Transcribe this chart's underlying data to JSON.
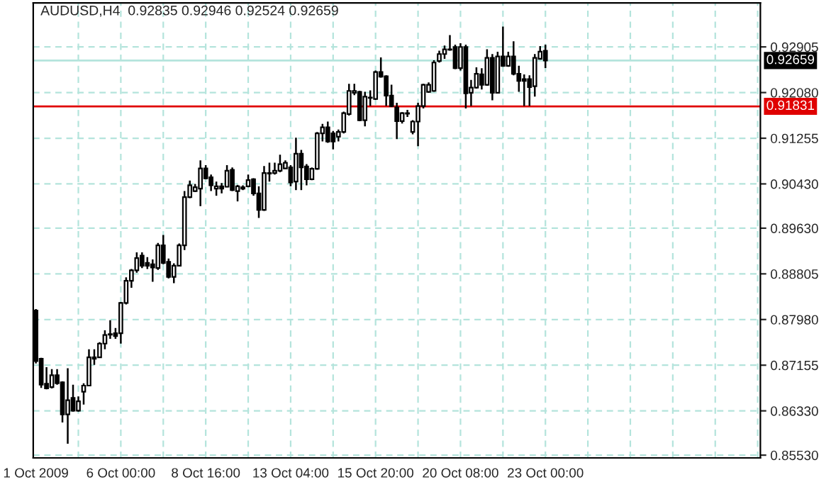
{
  "chart_data": {
    "type": "candlestick",
    "title": "AUDUSD,H4  0.92835 0.92946 0.92524 0.92659",
    "categories": [
      "1 Oct 2009",
      null,
      null,
      null,
      null,
      null,
      null,
      null,
      null,
      null,
      null,
      null,
      null,
      null,
      null,
      null,
      "6 Oct 00:00",
      null,
      null,
      null,
      null,
      null,
      null,
      null,
      null,
      null,
      null,
      null,
      null,
      null,
      null,
      null,
      "8 Oct 16:00",
      null,
      null,
      null,
      null,
      null,
      null,
      null,
      null,
      null,
      null,
      null,
      null,
      null,
      null,
      null,
      "13 Oct 04:00",
      null,
      null,
      null,
      null,
      null,
      null,
      null,
      null,
      null,
      null,
      null,
      null,
      null,
      null,
      null,
      "15 Oct 20:00",
      null,
      null,
      null,
      null,
      null,
      null,
      null,
      null,
      null,
      null,
      null,
      null,
      null,
      null,
      null,
      "20 Oct 08:00",
      null,
      null,
      null,
      null,
      null,
      null,
      null,
      null,
      null,
      null,
      null,
      null,
      null,
      null,
      null,
      "23 Oct 00:00",
      null,
      null,
      null,
      null,
      null,
      null,
      null,
      null,
      null,
      null,
      null,
      null,
      null,
      null,
      null,
      null,
      null,
      null,
      null,
      null,
      null,
      null,
      null,
      null,
      null,
      null,
      null,
      null,
      null,
      null,
      null,
      null,
      null,
      null,
      null,
      null,
      null,
      null,
      null,
      null
    ],
    "ohlc": [
      [
        0.88142,
        0.88168,
        0.87187,
        0.87229
      ],
      [
        0.87272,
        0.87289,
        0.86743,
        0.86803
      ],
      [
        0.8682,
        0.87118,
        0.86718,
        0.86735
      ],
      [
        0.8676,
        0.87084,
        0.86735,
        0.86974
      ],
      [
        0.86974,
        0.87084,
        0.86803,
        0.86829
      ],
      [
        0.86846,
        0.86863,
        0.86121,
        0.86265
      ],
      [
        0.86265,
        0.87101,
        0.85736,
        0.86521
      ],
      [
        0.86564,
        0.86803,
        0.86317,
        0.86334
      ],
      [
        0.86334,
        0.8659,
        0.86317,
        0.86504
      ],
      [
        0.86675,
        0.86829,
        0.86444,
        0.86786
      ],
      [
        0.86786,
        0.87443,
        0.86777,
        0.87297
      ],
      [
        0.87272,
        0.87443,
        0.87161,
        0.87297
      ],
      [
        0.87297,
        0.87571,
        0.87289,
        0.87545
      ],
      [
        0.87545,
        0.87784,
        0.87443,
        0.87699
      ],
      [
        0.87707,
        0.87967,
        0.8763,
        0.87716
      ],
      [
        0.87733,
        0.87826,
        0.8763,
        0.87682
      ],
      [
        0.87733,
        0.88296,
        0.87545,
        0.88279
      ],
      [
        0.88279,
        0.88741,
        0.88253,
        0.88681
      ],
      [
        0.88681,
        0.88894,
        0.88552,
        0.88868
      ],
      [
        0.88868,
        0.89192,
        0.88825,
        0.8909
      ],
      [
        0.89133,
        0.89192,
        0.8891,
        0.88953
      ],
      [
        0.89004,
        0.89107,
        0.88894,
        0.88953
      ],
      [
        0.88979,
        0.89064,
        0.88663,
        0.88919
      ],
      [
        0.8891,
        0.89363,
        0.88876,
        0.8932
      ],
      [
        0.8932,
        0.89508,
        0.88979,
        0.89004
      ],
      [
        0.89022,
        0.89081,
        0.88723,
        0.88749
      ],
      [
        0.88749,
        0.88996,
        0.88637,
        0.88953
      ],
      [
        0.88953,
        0.89354,
        0.88936,
        0.8932
      ],
      [
        0.8932,
        0.90301,
        0.89235,
        0.9019
      ],
      [
        0.9019,
        0.90489,
        0.90173,
        0.90404
      ],
      [
        0.90301,
        0.90429,
        0.90284,
        0.90369
      ],
      [
        0.90344,
        0.90856,
        0.90028,
        0.9071
      ],
      [
        0.9071,
        0.9077,
        0.90514,
        0.90531
      ],
      [
        0.90548,
        0.90599,
        0.90301,
        0.90404
      ],
      [
        0.90344,
        0.90472,
        0.90216,
        0.90387
      ],
      [
        0.90387,
        0.90446,
        0.90259,
        0.90344
      ],
      [
        0.90378,
        0.9077,
        0.90369,
        0.90668
      ],
      [
        0.90685,
        0.90728,
        0.90301,
        0.90318
      ],
      [
        0.90301,
        0.90412,
        0.90114,
        0.90387
      ],
      [
        0.90369,
        0.90404,
        0.90318,
        0.90344
      ],
      [
        0.90387,
        0.90599,
        0.90369,
        0.90498
      ],
      [
        0.90514,
        0.90531,
        0.90216,
        0.90259
      ],
      [
        0.90259,
        0.90387,
        0.89815,
        0.8996
      ],
      [
        0.8996,
        0.90753,
        0.89943,
        0.90625
      ],
      [
        0.90616,
        0.90813,
        0.90472,
        0.90625
      ],
      [
        0.90625,
        0.90813,
        0.90599,
        0.90668
      ],
      [
        0.90668,
        0.90958,
        0.90642,
        0.90787
      ],
      [
        0.9071,
        0.90856,
        0.90702,
        0.90813
      ],
      [
        0.90728,
        0.9077,
        0.90387,
        0.90455
      ],
      [
        0.90472,
        0.91265,
        0.90318,
        0.90975
      ],
      [
        0.90975,
        0.91043,
        0.90318,
        0.90728
      ],
      [
        0.90745,
        0.90787,
        0.90404,
        0.90514
      ],
      [
        0.90514,
        0.90728,
        0.90498,
        0.90702
      ],
      [
        0.90702,
        0.91368,
        0.90685,
        0.91342
      ],
      [
        0.91342,
        0.91513,
        0.91197,
        0.91453
      ],
      [
        0.91453,
        0.91556,
        0.91171,
        0.91197
      ],
      [
        0.91342,
        0.91385,
        0.91052,
        0.91197
      ],
      [
        0.91283,
        0.91411,
        0.91197,
        0.91368
      ],
      [
        0.91368,
        0.91734,
        0.91342,
        0.91709
      ],
      [
        0.91692,
        0.92238,
        0.91666,
        0.9211
      ],
      [
        0.92076,
        0.92238,
        0.92033,
        0.9211
      ],
      [
        0.92093,
        0.9211,
        0.91564,
        0.91581
      ],
      [
        0.91581,
        0.92093,
        0.9147,
        0.92007
      ],
      [
        0.91982,
        0.92119,
        0.91837,
        0.9199
      ],
      [
        0.91965,
        0.92477,
        0.91948,
        0.92452
      ],
      [
        0.92452,
        0.92716,
        0.9235,
        0.92367
      ],
      [
        0.92375,
        0.92392,
        0.91837,
        0.92025
      ],
      [
        0.92025,
        0.92221,
        0.9182,
        0.91837
      ],
      [
        0.91811,
        0.91897,
        0.9124,
        0.91564
      ],
      [
        0.91564,
        0.91726,
        0.91521,
        0.91709
      ],
      [
        0.917,
        0.91769,
        0.9164,
        0.91709
      ],
      [
        0.91368,
        0.91581,
        0.91325,
        0.91556
      ],
      [
        0.91556,
        0.91897,
        0.91112,
        0.91837
      ],
      [
        0.91837,
        0.92238,
        0.91794,
        0.92221
      ],
      [
        0.92093,
        0.92264,
        0.92076,
        0.92221
      ],
      [
        0.9211,
        0.92665,
        0.92093,
        0.92622
      ],
      [
        0.92648,
        0.92836,
        0.92622,
        0.92776
      ],
      [
        0.92776,
        0.92929,
        0.92691,
        0.92861
      ],
      [
        0.92853,
        0.93117,
        0.92836,
        0.92861
      ],
      [
        0.92904,
        0.92946,
        0.92503,
        0.9252
      ],
      [
        0.9252,
        0.92972,
        0.92477,
        0.92904
      ],
      [
        0.92904,
        0.92946,
        0.91794,
        0.92067
      ],
      [
        0.92076,
        0.92307,
        0.91837,
        0.9217
      ],
      [
        0.9217,
        0.92537,
        0.92153,
        0.92418
      ],
      [
        0.92409,
        0.9252,
        0.92136,
        0.92221
      ],
      [
        0.92221,
        0.92861,
        0.92204,
        0.92708
      ],
      [
        0.92708,
        0.92776,
        0.91939,
        0.92076
      ],
      [
        0.92076,
        0.92819,
        0.92067,
        0.92733
      ],
      [
        0.92733,
        0.93271,
        0.92546,
        0.92563
      ],
      [
        0.92563,
        0.92819,
        0.92546,
        0.92733
      ],
      [
        0.92733,
        0.93006,
        0.92392,
        0.92418
      ],
      [
        0.92418,
        0.92563,
        0.92093,
        0.9229
      ],
      [
        0.92324,
        0.92409,
        0.91837,
        0.9229
      ],
      [
        0.92324,
        0.92392,
        0.91837,
        0.92179
      ],
      [
        0.92196,
        0.92776,
        0.92007,
        0.92708
      ],
      [
        0.92691,
        0.92921,
        0.92674,
        0.92819
      ],
      [
        0.92835,
        0.92946,
        0.92524,
        0.92659
      ],
      null,
      null,
      null,
      null,
      null,
      null,
      null,
      null,
      null,
      null,
      null,
      null,
      null,
      null,
      null,
      null,
      null,
      null,
      null,
      null,
      null,
      null,
      null,
      null,
      null,
      null,
      null,
      null,
      null,
      null,
      null,
      null,
      null,
      null,
      null,
      null,
      null,
      null,
      null,
      null
    ],
    "ylim": [
      0.8548,
      0.937
    ],
    "yticks": [
      {
        "value": 0.8553,
        "label": "0.85530"
      },
      {
        "value": 0.8633,
        "label": "0.86330"
      },
      0.87155,
      {
        "value": 0.8798,
        "label": "0.87980"
      },
      0.88805,
      {
        "value": 0.8963,
        "label": "0.89630"
      },
      {
        "value": 0.9043,
        "label": "0.90430"
      },
      0.91255,
      {
        "value": 0.9208,
        "label": "0.92080"
      },
      0.92905
    ],
    "ref_lines": [
      {
        "axis": "y",
        "value": 0.92659,
        "label": "0.92659",
        "color": "#b4e4dc"
      },
      {
        "axis": "y",
        "value": 0.91831,
        "label": "0.91831",
        "color": "#e00000"
      }
    ],
    "grid": true
  }
}
